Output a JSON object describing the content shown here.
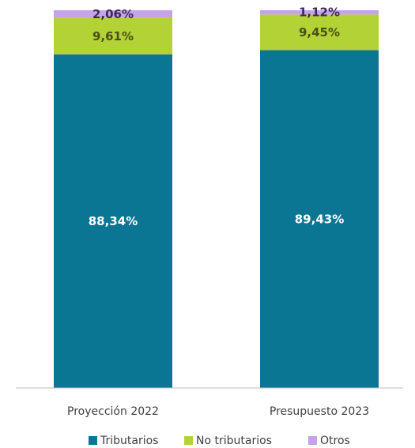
{
  "chart_data": {
    "type": "bar",
    "stacked": true,
    "categories": [
      "Proyección 2022",
      "Presupuesto 2023"
    ],
    "series": [
      {
        "name": "Tributarios",
        "color": "#0b7694",
        "label_color": "#ffffff",
        "values": [
          88.34,
          89.43
        ],
        "labels": [
          "88,34%",
          "89,43%"
        ]
      },
      {
        "name": "No tributarios",
        "color": "#b3d236",
        "label_color": "#4a4f12",
        "values": [
          9.61,
          9.45
        ],
        "labels": [
          "9,61%",
          "9,45%"
        ]
      },
      {
        "name": "Otros",
        "color": "#c4a3ea",
        "label_color": "#3a2a55",
        "values": [
          2.06,
          1.12
        ],
        "labels": [
          "2,06%",
          "1,12%"
        ]
      }
    ],
    "ylim": [
      0,
      100
    ],
    "legend_position": "bottom",
    "grid": false
  }
}
